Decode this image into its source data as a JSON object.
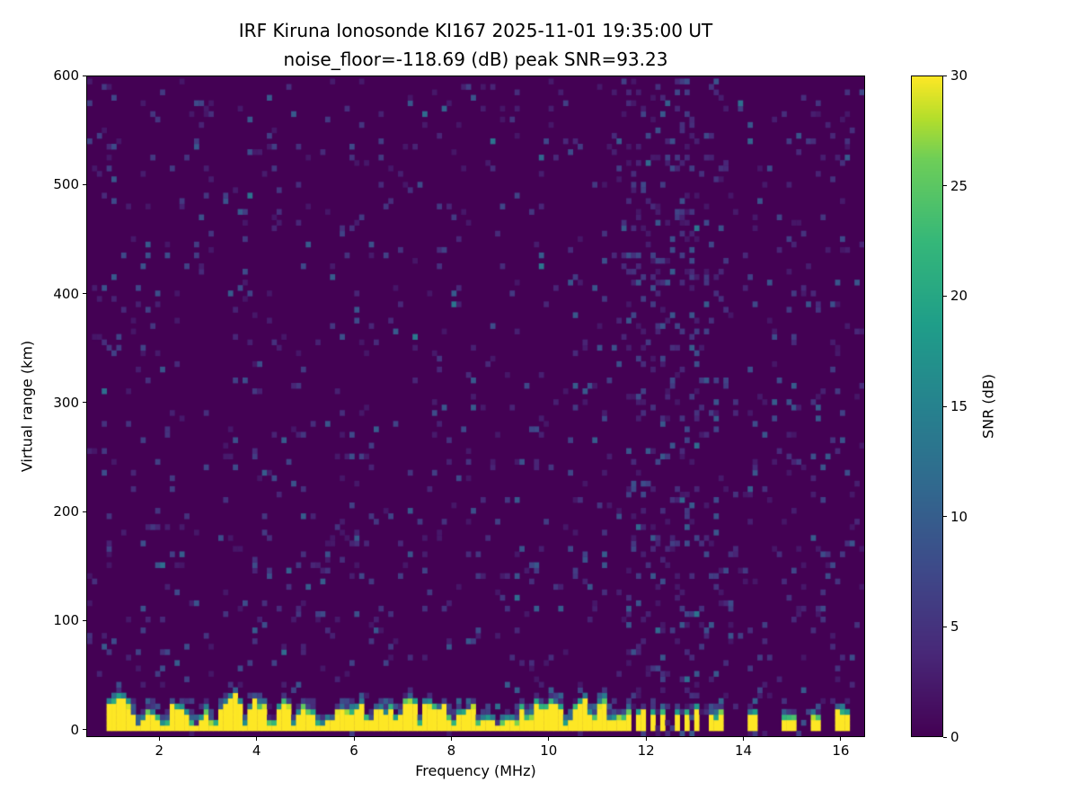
{
  "title": "IRF Kiruna Ionosonde KI167 2025-11-01 19:35:00  UT",
  "subtitle": "noise_floor=-118.69 (dB) peak SNR=93.23",
  "colorbar": {
    "label": "SNR (dB)",
    "min": 0,
    "max": 30,
    "ticks": [
      0,
      5,
      10,
      15,
      20,
      25,
      30
    ],
    "colormap": "viridis"
  },
  "chart_data": {
    "type": "heatmap",
    "title": "IRF Kiruna Ionosonde KI167 2025-11-01 19:35:00  UT",
    "subtitle": "noise_floor=-118.69 (dB) peak SNR=93.23",
    "station": "IRF Kiruna Ionosonde KI167",
    "timestamp_ut": "2025-11-01 19:35:00",
    "noise_floor_db": -118.69,
    "peak_snr_db": 93.23,
    "xlabel": "Frequency (MHz)",
    "ylabel": "Virtual range (km)",
    "xlim": [
      0.5,
      16.5
    ],
    "ylim": [
      -7,
      600
    ],
    "x_ticks": [
      2,
      4,
      6,
      8,
      10,
      12,
      14,
      16
    ],
    "y_ticks": [
      0,
      100,
      200,
      300,
      400,
      500,
      600
    ],
    "colormap": "viridis",
    "snr_range_db": [
      0,
      30
    ],
    "grid": false,
    "features": {
      "background_snr_db": 0,
      "speckle_noise": {
        "density": 0.055,
        "snr_db_range": [
          2,
          10
        ]
      },
      "left_edge_noise_column": {
        "freq_range_mhz": [
          0.9,
          1.05
        ],
        "density": 0.12
      },
      "ground_clutter_band": {
        "freq_range_mhz": [
          0.9,
          11.6
        ],
        "mean_top_km": 26,
        "saturated_snr_db": 30,
        "transition_snr_db_range": [
          4,
          28
        ],
        "notch_freqs_mhz": [
          1.55,
          2.1,
          2.75,
          3.1,
          3.75,
          4.3,
          4.75,
          5.3,
          6.3,
          6.9,
          7.35,
          8.0,
          8.6,
          8.95,
          9.6,
          10.4,
          10.9,
          11.3
        ]
      },
      "intermittent_clutter": {
        "freq_range_mhz": [
          11.6,
          13.05
        ],
        "stripe_width_mhz": 0.12,
        "top_km": 21
      },
      "isolated_stripes_mhz": [
        13.4,
        13.55,
        14.2,
        14.9,
        15.05,
        15.5,
        16.0,
        16.1
      ],
      "rfi_speckle_columns": {
        "freq_range_mhz": [
          11.58,
          13.38
        ],
        "density": 0.16
      },
      "weak_rfi_columns_mhz": [
        13.7,
        14.45,
        15.2,
        15.75
      ],
      "bottom_gap_below_km": -2
    }
  }
}
